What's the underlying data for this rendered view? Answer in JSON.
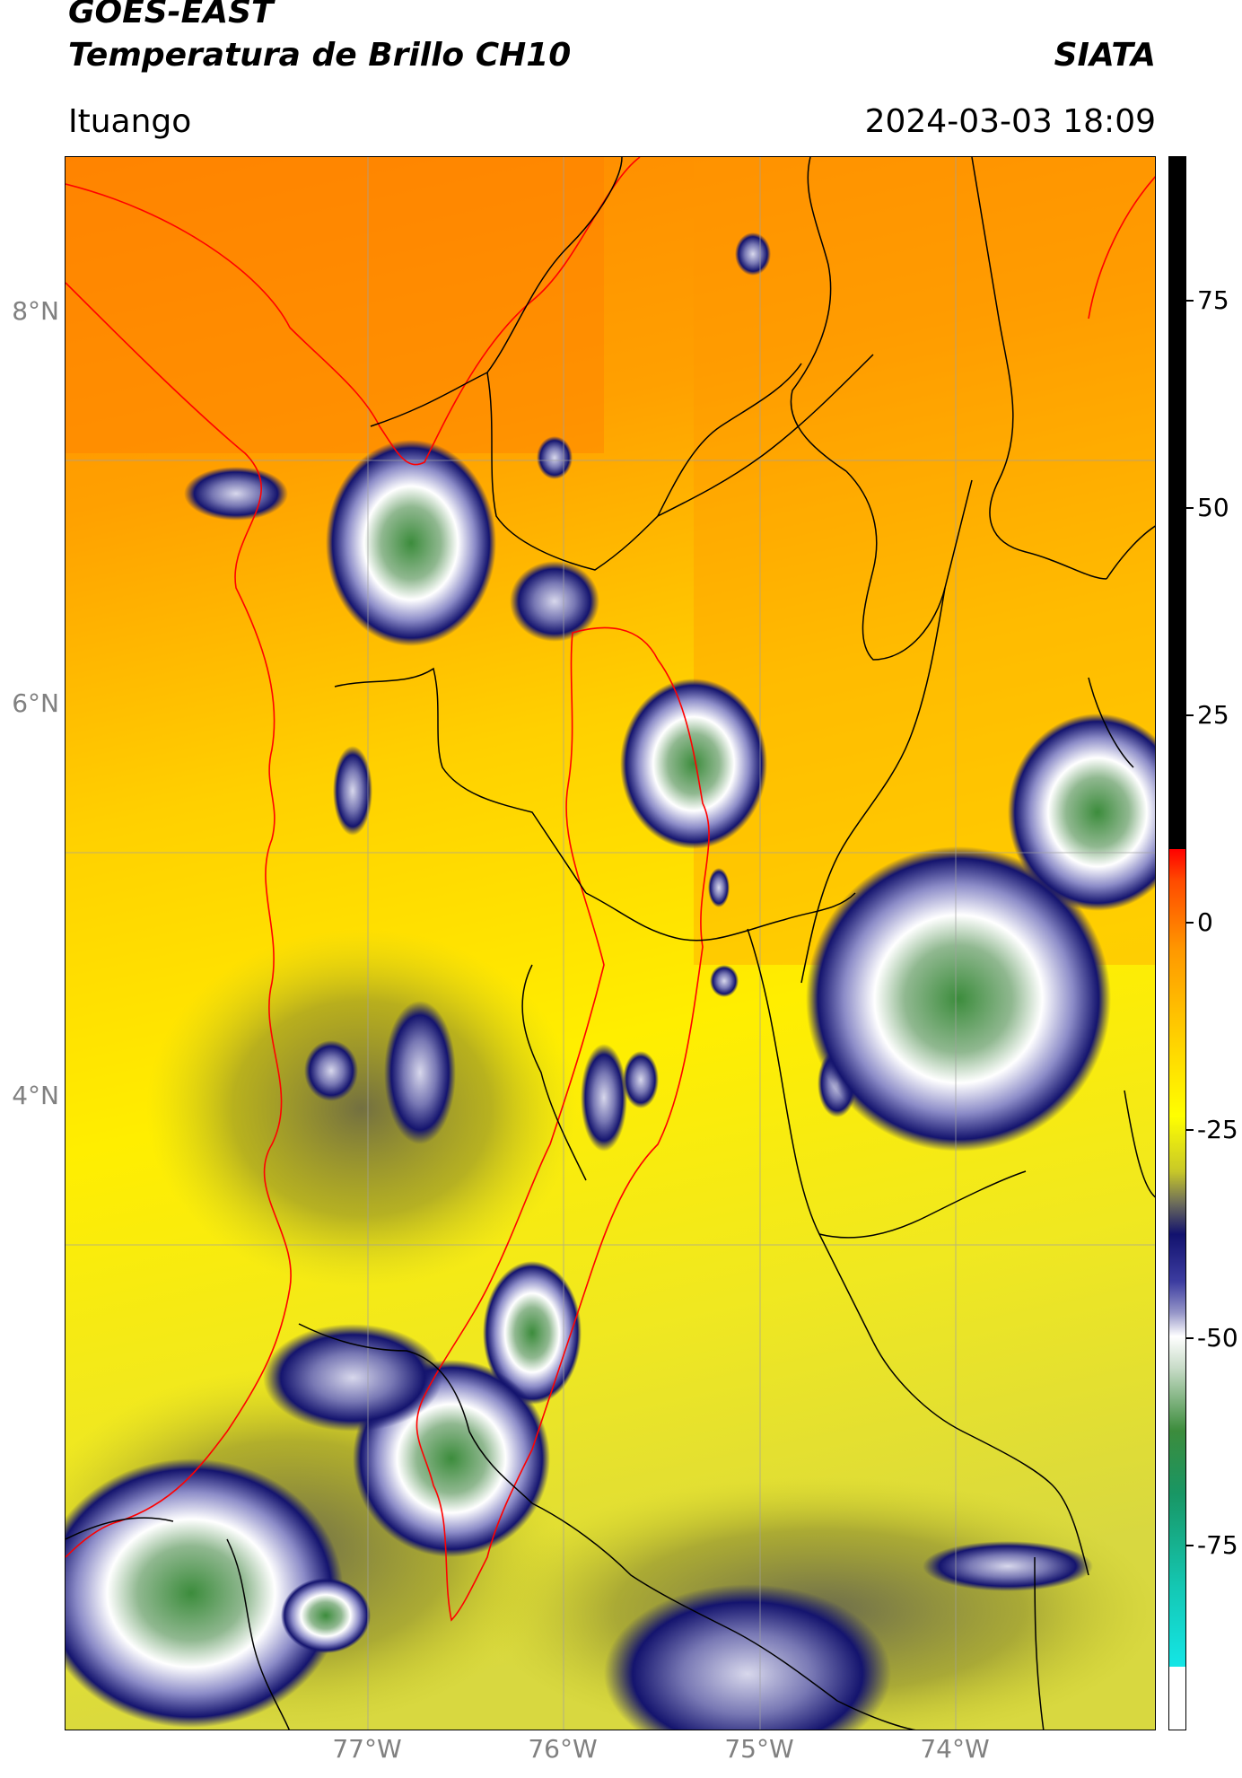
{
  "header": {
    "title_line1": "GOES-EAST",
    "title_line2": "Temperatura de Brillo CH10",
    "brand": "SIATA",
    "location": "Ituango",
    "timestamp": "2024-03-03 18:09"
  },
  "map": {
    "lat_labels": [
      "8°N",
      "6°N",
      "4°N"
    ],
    "lon_labels": [
      "77°W",
      "76°W",
      "75°W",
      "74°W"
    ],
    "gridlines": true,
    "colors": {
      "warm_orange": "#ff8c00",
      "mid_yellow": "#ffff00",
      "cold_navy": "#12126e",
      "coldest_green": "#3c8c3c",
      "border_black": "#000000",
      "region_red": "#ff0000",
      "gridline_grey": "#a0a0a0"
    }
  },
  "colorbar": {
    "tick_labels": [
      "75",
      "50",
      "25",
      "0",
      "-25",
      "-50",
      "-75"
    ],
    "range": [
      -90,
      90
    ],
    "units": ""
  }
}
